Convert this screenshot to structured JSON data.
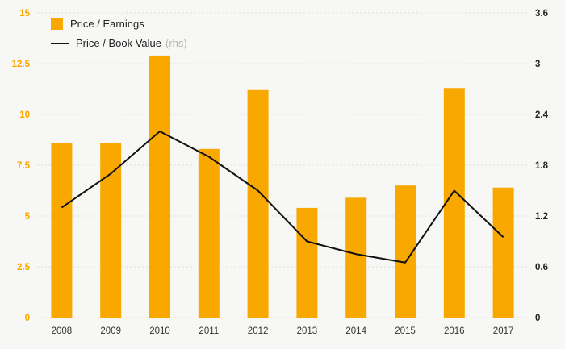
{
  "chart_data": {
    "type": "bar",
    "categories": [
      "2008",
      "2009",
      "2010",
      "2011",
      "2012",
      "2013",
      "2014",
      "2015",
      "2016",
      "2017"
    ],
    "series": [
      {
        "name": "Price / Earnings",
        "suffix": "",
        "type": "bar",
        "axis": "left",
        "color": "#F9A800",
        "values": [
          8.6,
          8.6,
          12.9,
          8.3,
          11.2,
          5.4,
          5.9,
          6.5,
          11.3,
          6.4
        ]
      },
      {
        "name": "Price / Book Value",
        "suffix": "(rhs)",
        "type": "line",
        "axis": "right",
        "color": "#111111",
        "values": [
          1.3,
          1.7,
          2.2,
          1.9,
          1.5,
          0.9,
          0.75,
          0.65,
          1.5,
          0.95
        ]
      }
    ],
    "title": "",
    "xlabel": "",
    "ylabel": "",
    "left_axis": {
      "min": 0,
      "max": 15,
      "ticks": [
        0,
        2.5,
        5,
        7.5,
        10,
        12.5,
        15
      ],
      "tick_labels": [
        "0",
        "2.5",
        "5",
        "7.5",
        "10",
        "12.5",
        "15"
      ],
      "color": "#F9A800"
    },
    "right_axis": {
      "min": 0,
      "max": 3.6,
      "ticks": [
        0,
        0.6,
        1.2,
        1.8,
        2.4,
        3,
        3.6
      ],
      "tick_labels": [
        "0",
        "0.6",
        "1.2",
        "1.8",
        "2.4",
        "3",
        "3.6"
      ],
      "color": "#222222"
    },
    "x_axis_label_color": "#333333",
    "grid": "on",
    "gridline_color": "#dddddd",
    "legend_position": "top-left",
    "background_color": "#f7f7f5"
  }
}
